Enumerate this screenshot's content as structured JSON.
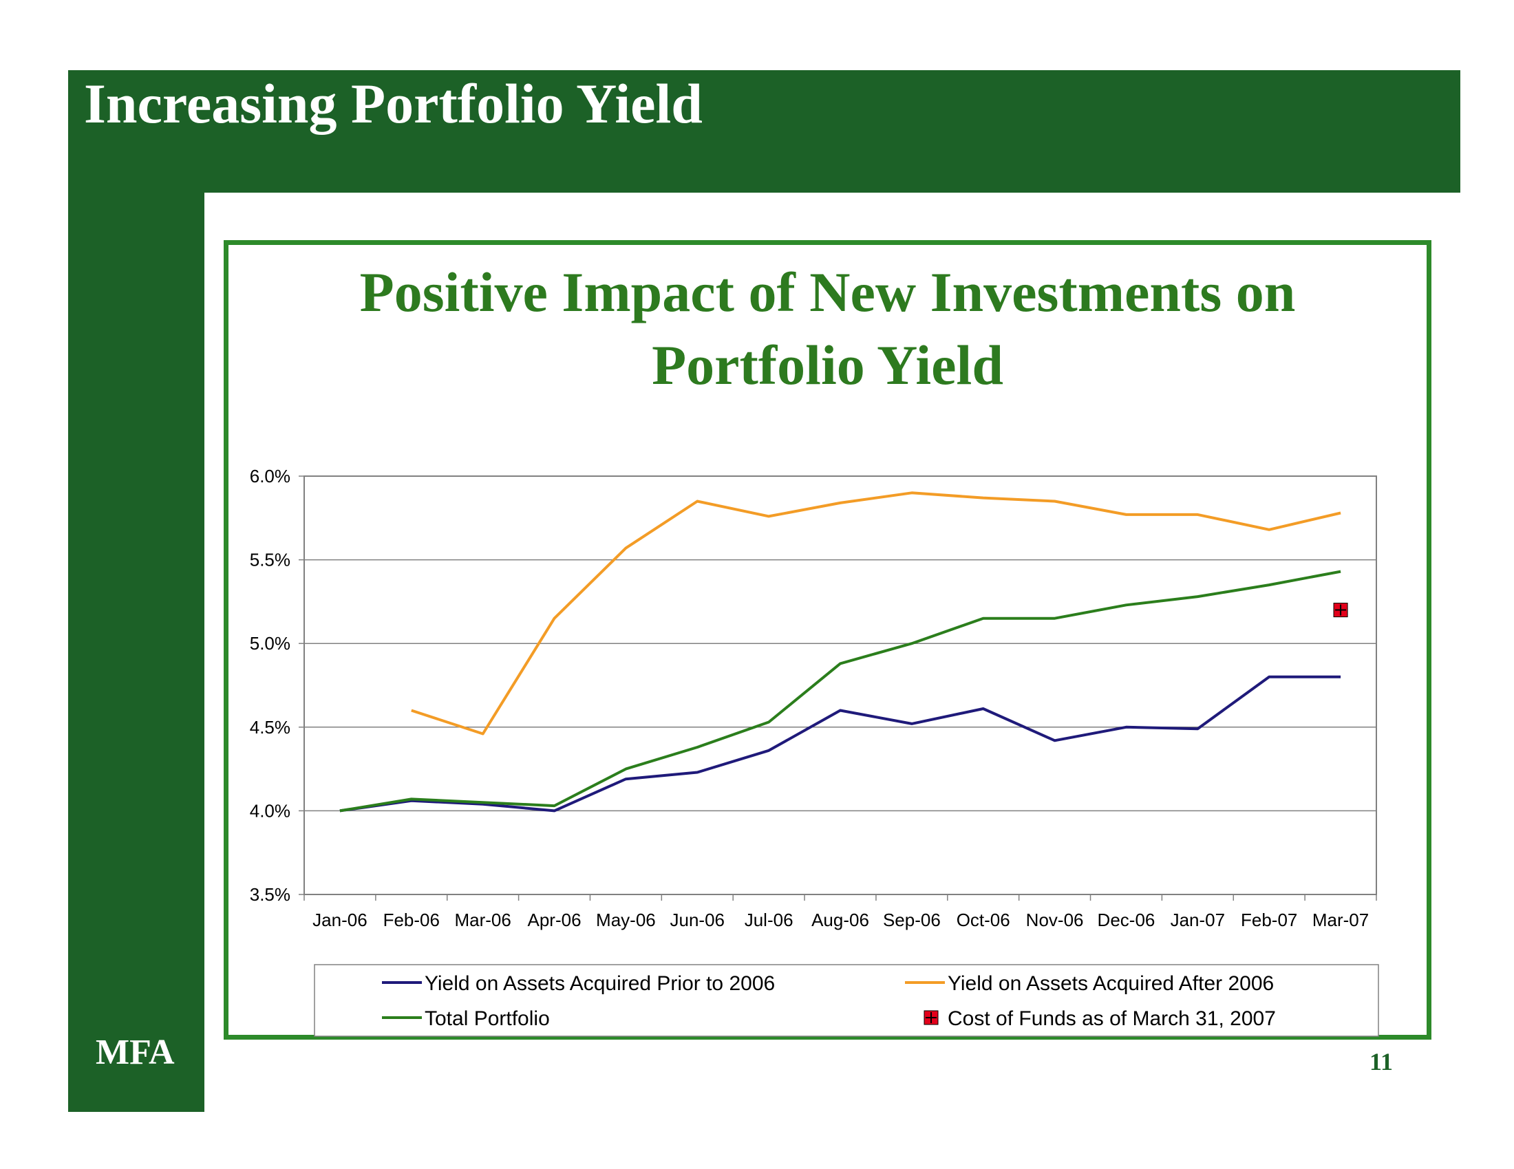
{
  "slide": {
    "title": "Increasing Portfolio Yield",
    "brand": "MFA",
    "page_number": "11"
  },
  "colors": {
    "brand_green": "#1c6127",
    "frame_green": "#2d8a2a",
    "title_green": "#2d7a1f",
    "prior": "#1f1a7a",
    "after": "#f39c26",
    "total": "#2b7e1c",
    "cost": "#e3001b"
  },
  "chart_data": {
    "type": "line",
    "title_lines": [
      "Positive Impact of New Investments on",
      "Portfolio Yield"
    ],
    "categories": [
      "Jan-06",
      "Feb-06",
      "Mar-06",
      "Apr-06",
      "May-06",
      "Jun-06",
      "Jul-06",
      "Aug-06",
      "Sep-06",
      "Oct-06",
      "Nov-06",
      "Dec-06",
      "Jan-07",
      "Feb-07",
      "Mar-07"
    ],
    "y_ticks": [
      "6.0%",
      "5.5%",
      "5.0%",
      "4.5%",
      "4.0%",
      "3.5%"
    ],
    "ylim": [
      3.5,
      6.0
    ],
    "grid": true,
    "legend_position": "bottom",
    "series": [
      {
        "name": "Yield on Assets Acquired Prior to 2006",
        "color": "#1f1a7a",
        "values": [
          4.0,
          4.06,
          4.04,
          4.0,
          4.19,
          4.23,
          4.36,
          4.6,
          4.52,
          4.61,
          4.42,
          4.5,
          4.49,
          4.8,
          4.8
        ]
      },
      {
        "name": "Yield on Assets Acquired After 2006",
        "color": "#f39c26",
        "values": [
          null,
          4.6,
          4.46,
          5.15,
          5.57,
          5.85,
          5.76,
          5.84,
          5.9,
          5.87,
          5.85,
          5.77,
          5.77,
          5.68,
          5.78
        ]
      },
      {
        "name": "Total Portfolio",
        "color": "#2b7e1c",
        "values": [
          4.0,
          4.07,
          4.05,
          4.03,
          4.25,
          4.38,
          4.53,
          4.88,
          5.0,
          5.15,
          5.15,
          5.23,
          5.28,
          5.35,
          5.43
        ]
      }
    ],
    "marker": {
      "name": "Cost of Funds as of March 31, 2007",
      "category": "Mar-07",
      "value": 5.2,
      "color": "#e3001b"
    }
  }
}
